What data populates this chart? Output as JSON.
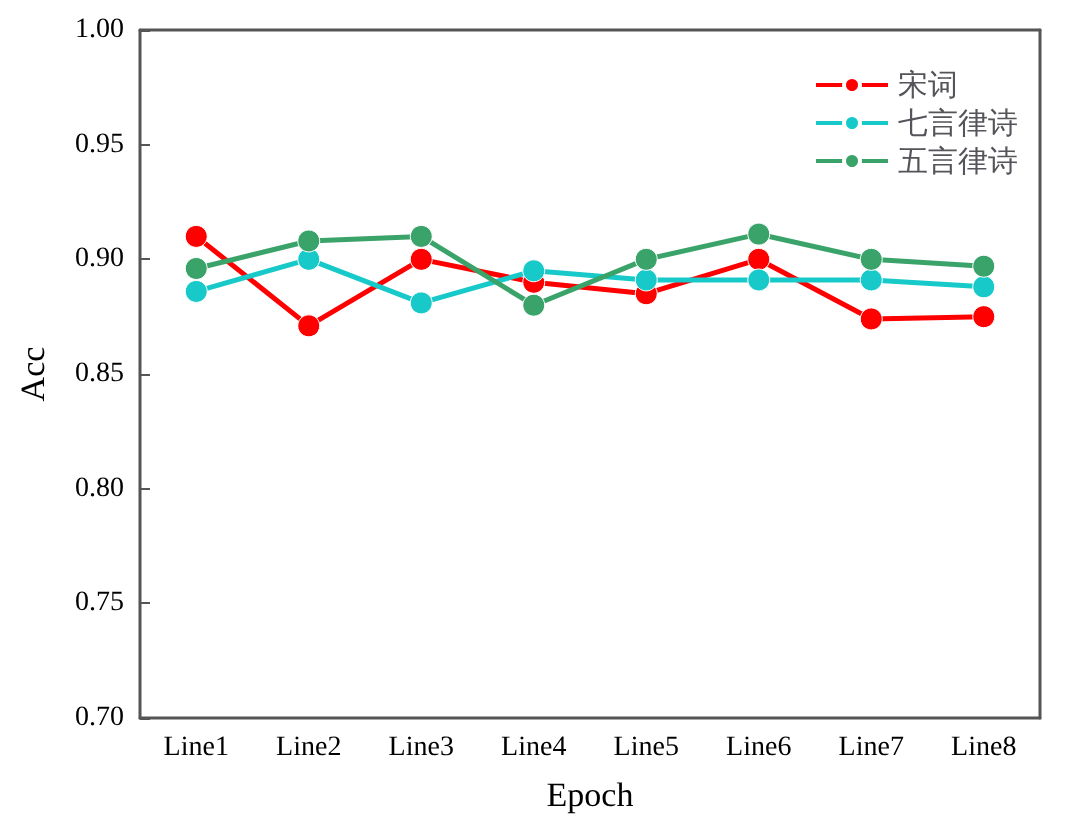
{
  "chart_data": {
    "type": "line",
    "xlabel": "Epoch",
    "ylabel": "Acc",
    "categories": [
      "Line1",
      "Line2",
      "Line3",
      "Line4",
      "Line5",
      "Line6",
      "Line7",
      "Line8"
    ],
    "series": [
      {
        "name": "宋词",
        "color": "#ff0000",
        "values": [
          0.91,
          0.871,
          0.9,
          0.89,
          0.885,
          0.9,
          0.874,
          0.875
        ]
      },
      {
        "name": "七言律诗",
        "color": "#17c9c9",
        "values": [
          0.886,
          0.9,
          0.881,
          0.895,
          0.891,
          0.891,
          0.891,
          0.888
        ]
      },
      {
        "name": "五言律诗",
        "color": "#3aa36a",
        "values": [
          0.896,
          0.908,
          0.91,
          0.88,
          0.9,
          0.911,
          0.9,
          0.897
        ]
      }
    ],
    "ylim": [
      0.7,
      1.0
    ],
    "yticks": [
      {
        "value": 0.7,
        "label": "0.70"
      },
      0.75,
      {
        "value": 0.8,
        "label": "0.80"
      },
      0.85,
      {
        "value": 0.9,
        "label": "0.90"
      },
      0.95,
      {
        "value": 1,
        "label": "1.00"
      }
    ],
    "grid": false,
    "legend": "top right",
    "marker": "circle",
    "line_style": "solid"
  }
}
